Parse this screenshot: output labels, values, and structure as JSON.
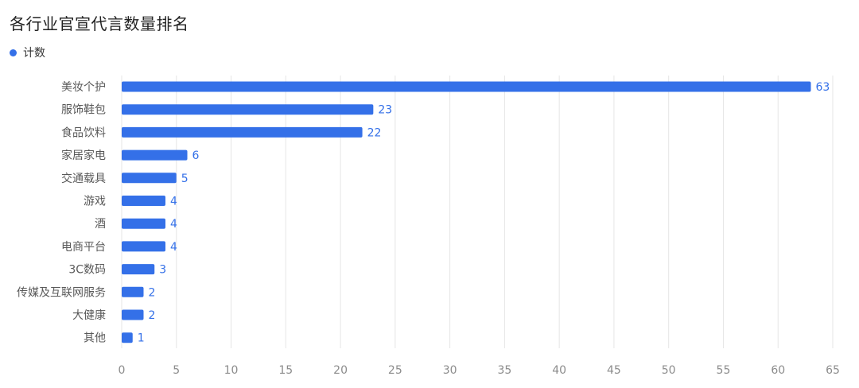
{
  "title": "各行业官宣代言数量排名",
  "legend": {
    "label": "计数",
    "color": "#3470E8"
  },
  "chart_data": {
    "type": "bar",
    "orientation": "horizontal",
    "categories": [
      "美妆个护",
      "服饰鞋包",
      "食品饮料",
      "家居家电",
      "交通载具",
      "游戏",
      "酒",
      "电商平台",
      "3C数码",
      "传媒及互联网服务",
      "大健康",
      "其他"
    ],
    "series": [
      {
        "name": "计数",
        "values": [
          63,
          23,
          22,
          6,
          5,
          4,
          4,
          4,
          3,
          2,
          2,
          1
        ]
      }
    ],
    "xlim": [
      0,
      65
    ],
    "xticks": [
      0,
      5,
      10,
      15,
      20,
      25,
      30,
      35,
      40,
      45,
      50,
      55,
      60,
      65
    ],
    "grid": true,
    "legend_position": "top-left",
    "bar_color": "#3470E8",
    "grid_color": "#e6e6e6"
  }
}
